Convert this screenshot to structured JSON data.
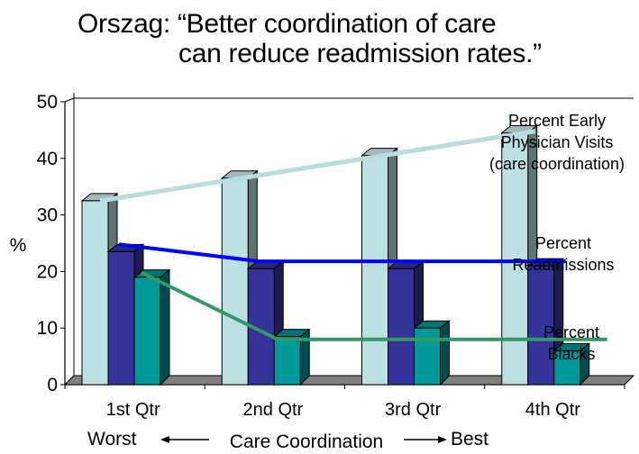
{
  "slide": {
    "title_line1": "Orszag: “Better coordination of care",
    "title_line2": "can reduce readmission rates.”"
  },
  "chart_data": {
    "type": "bar",
    "style": "3d-clustered-column-with-trend-lines",
    "title": "Orszag: “Better coordination of care can reduce readmission rates.”",
    "categories": [
      "1st Qtr",
      "2nd Qtr",
      "3rd Qtr",
      "4th Qtr"
    ],
    "ylabel": "%",
    "xlabel": "Care Coordination",
    "x_axis_annotation": {
      "left": "Worst",
      "middle": "Care Coordination",
      "right": "Best"
    },
    "ylim": [
      0,
      50
    ],
    "yticks": [
      0,
      10,
      20,
      30,
      40,
      50
    ],
    "grid": false,
    "series": [
      {
        "name": "Percent Early Physician Visits (care coordination)",
        "label_lines": [
          "Percent Early",
          "Physician Visits",
          "(care coordination)"
        ],
        "values": [
          32.5,
          36.5,
          40.5,
          44.5
        ],
        "color": "#bde0e3",
        "side_color": "#5f7373",
        "top_color": "#a2b8ba",
        "trend_line_color": "#b7dde1",
        "trend_values": [
          32.5,
          44.8
        ]
      },
      {
        "name": "Percent Readmissions",
        "label_lines": [
          "Percent",
          "Readmissions"
        ],
        "values": [
          23.5,
          20.5,
          20.5,
          21
        ],
        "color": "#343399",
        "side_color": "#1e1c4f",
        "top_color": "#2a2877",
        "trend_line_color": "#0000ff",
        "trend_values": [
          24.8,
          21.8,
          21.8,
          21.8
        ]
      },
      {
        "name": "Percent Blacks",
        "label_lines": [
          "Percent",
          "Blacks"
        ],
        "values": [
          19,
          8.5,
          10,
          6
        ],
        "color": "#009999",
        "side_color": "#004d4d",
        "top_color": "#007575",
        "trend_line_color": "#339966",
        "trend_values": [
          19.8,
          8,
          8,
          8
        ]
      }
    ],
    "floor_color": "#808080"
  }
}
